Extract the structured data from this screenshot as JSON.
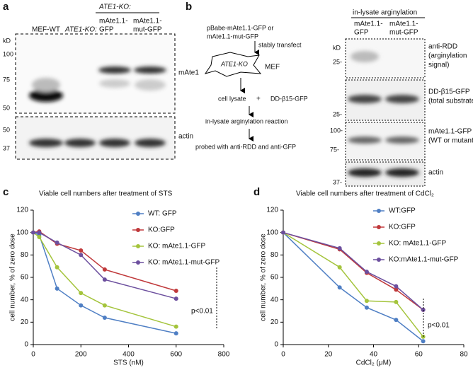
{
  "panels": {
    "a": {
      "letter": "a",
      "group_header": "ATE1-KO:",
      "lanes": [
        [
          "MEF-WT"
        ],
        [
          "ATE1-KO:"
        ],
        [
          "mAte1.1-",
          "GFP"
        ],
        [
          "mAte1.1-",
          "mut-GFP"
        ]
      ],
      "kd": "kD",
      "top_markers": [
        "100",
        "75",
        "50"
      ],
      "top_label": "mAte1",
      "bottom_markers": [
        "50",
        "37"
      ],
      "bottom_label": "actin"
    },
    "b": {
      "letter": "b",
      "steps": [
        "pBabe-mAte1.1-GFP or",
        "mAte1.1-mut-GFP",
        "stably transfect",
        "ATE1-KO",
        "MEF",
        "cell lysate",
        "+",
        "DD-β15-GFP",
        "in-lysate arginylation reaction",
        "probed with anti-RDD and anti-GFP"
      ],
      "blot_header": "in-lysate arginylation",
      "lanes": [
        [
          "mAte1.1-",
          "GFP"
        ],
        [
          "mAte1.1-",
          "mut-GFP"
        ]
      ],
      "kd": "kD",
      "markers": [
        "25-",
        "25-",
        "100-",
        "75-",
        "37-"
      ],
      "box_labels": [
        [
          "anti-RDD",
          "(arginylation",
          "signal)"
        ],
        [
          "DD-β15-GFP",
          "(total substrate)"
        ],
        [
          "mAte1.1-GFP",
          "(WT or mutant)"
        ],
        [
          "actin"
        ]
      ]
    }
  },
  "chart_data": [
    {
      "type": "line",
      "letter": "c",
      "title": "Viable cell numbers after treatment of STS",
      "xlabel": "STS (nM)",
      "ylabel": "cell number, % of zero dose",
      "annotation": "p<0.01",
      "x": [
        0,
        25,
        100,
        200,
        300,
        600
      ],
      "xlim": [
        0,
        800
      ],
      "xticks": [
        0,
        200,
        400,
        600,
        800
      ],
      "ylim": [
        0,
        120
      ],
      "yticks": [
        0,
        20,
        40,
        60,
        80,
        100,
        120
      ],
      "series": [
        {
          "name": "WT: GFP",
          "color": "#4f7fc4",
          "values": [
            100,
            98,
            50,
            35,
            24,
            10
          ]
        },
        {
          "name": "KO:GFP",
          "color": "#c0393b",
          "values": [
            100,
            101,
            90,
            84,
            67,
            48
          ]
        },
        {
          "name": "KO: mAte1.1-GFP",
          "color": "#a4c43c",
          "values": [
            100,
            96,
            69,
            46,
            35,
            16
          ]
        },
        {
          "name": "KO: mAte1.1-mut-GFP",
          "color": "#6c4f9e",
          "values": [
            100,
            100,
            91,
            80,
            58,
            41
          ]
        }
      ]
    },
    {
      "type": "line",
      "letter": "d",
      "title": "Viable cell numbers after treatment of CdCl₂",
      "xlabel": "CdCl₂ (μM)",
      "ylabel": "cell number, % of zero dose",
      "annotation": "p<0.01",
      "x": [
        0,
        25,
        37,
        50,
        62
      ],
      "xlim": [
        0,
        80
      ],
      "xticks": [
        0,
        20,
        40,
        60,
        80
      ],
      "ylim": [
        0,
        120
      ],
      "yticks": [
        0,
        20,
        40,
        60,
        80,
        100,
        120
      ],
      "series": [
        {
          "name": "WT:GFP",
          "color": "#4f7fc4",
          "values": [
            100,
            51,
            33,
            22,
            3
          ]
        },
        {
          "name": "KO:GFP",
          "color": "#c0393b",
          "values": [
            100,
            85,
            64,
            49,
            31
          ]
        },
        {
          "name": "KO: mAte1.1-GFP",
          "color": "#a4c43c",
          "values": [
            100,
            69,
            39,
            38,
            7
          ]
        },
        {
          "name": "KO:mAte1.1-mut-GFP",
          "color": "#6c4f9e",
          "values": [
            100,
            86,
            65,
            52,
            31
          ]
        }
      ]
    }
  ]
}
